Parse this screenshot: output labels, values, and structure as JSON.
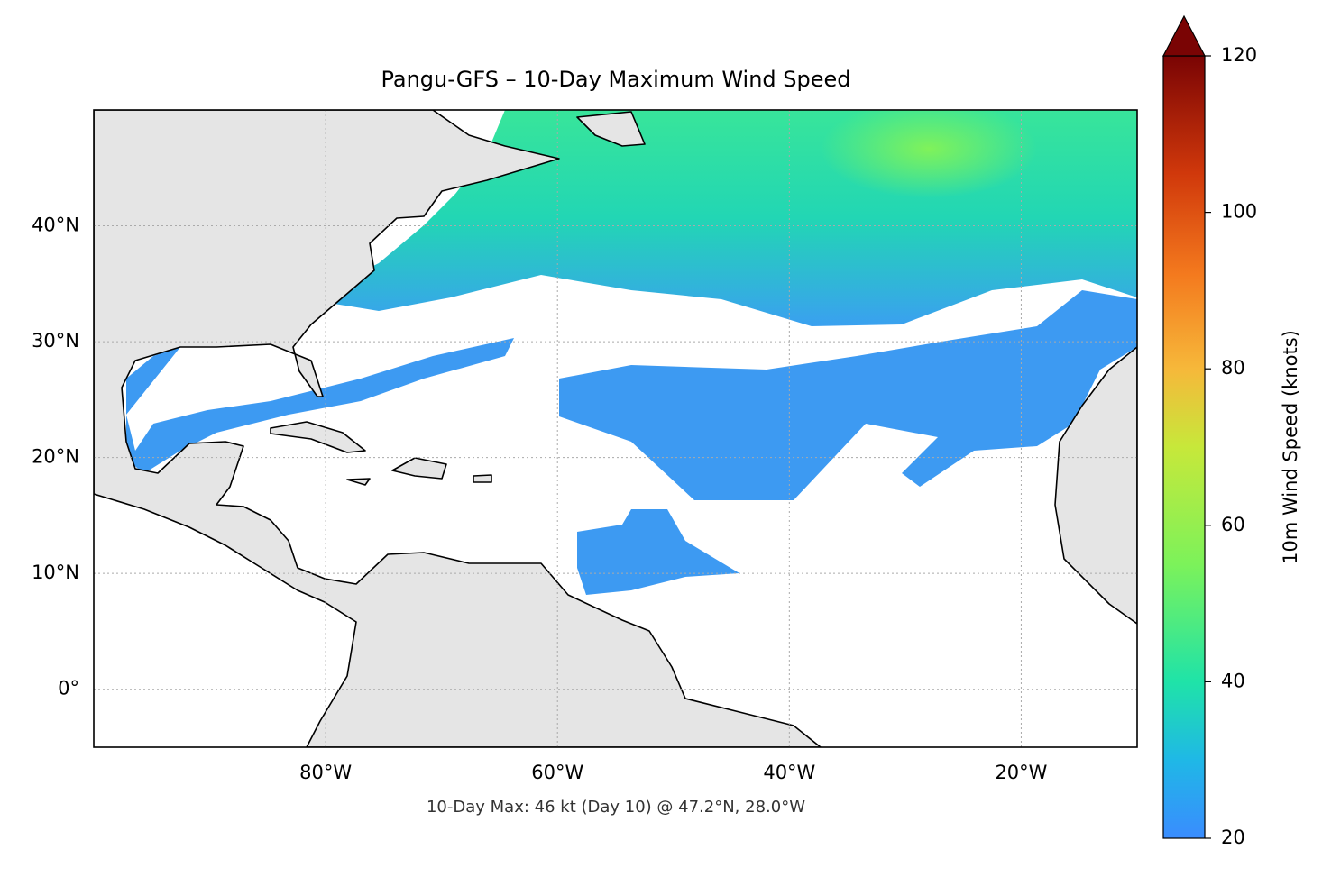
{
  "chart_data": {
    "type": "map",
    "title": "Pangu-GFS – 10-Day Maximum Wind Speed",
    "annotation": "10-Day Max: 46 kt (Day 10) @ 47.2°N, 28.0°W",
    "xlim": [
      -100,
      -10
    ],
    "ylim": [
      -5,
      50
    ],
    "xticks": [
      {
        "value": -80,
        "label": "80°W"
      },
      {
        "value": -60,
        "label": "60°W"
      },
      {
        "value": -40,
        "label": "40°W"
      },
      {
        "value": -20,
        "label": "20°W"
      }
    ],
    "yticks": [
      {
        "value": 0,
        "label": "0°"
      },
      {
        "value": 10,
        "label": "10°N"
      },
      {
        "value": 20,
        "label": "20°N"
      },
      {
        "value": 30,
        "label": "30°N"
      },
      {
        "value": 40,
        "label": "40°N"
      }
    ],
    "grid": true,
    "colorbar": {
      "label": "10m Wind Speed (knots)",
      "lim": [
        20,
        120
      ],
      "ticks": [
        20,
        40,
        60,
        80,
        100,
        120
      ]
    }
  }
}
